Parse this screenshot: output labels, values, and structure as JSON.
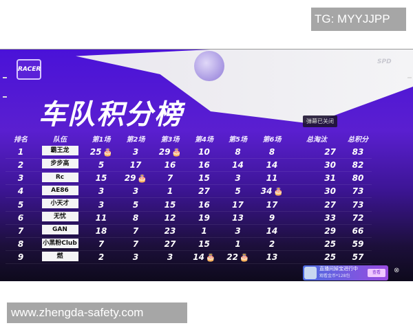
{
  "watermark_top": "TG: MYYJJPP",
  "watermark_bottom": "www.zhengda-safety.com",
  "logo_text": "RACER",
  "sponsor_text": "SPD",
  "title": "车队积分榜",
  "headers": [
    "排名",
    "队伍",
    "第1场",
    "第2场",
    "第3场",
    "第4场",
    "第5场",
    "第6场",
    "总淘汰",
    "总积分"
  ],
  "rows": [
    {
      "rank": "1",
      "team": "霸王龙",
      "games": [
        "25",
        "3",
        "29",
        "10",
        "8",
        "8"
      ],
      "cakes": [
        true,
        false,
        true,
        false,
        false,
        false
      ],
      "elims": "27",
      "total": "83"
    },
    {
      "rank": "2",
      "team": "步步高",
      "games": [
        "5",
        "17",
        "16",
        "16",
        "14",
        "14"
      ],
      "cakes": [
        false,
        false,
        false,
        false,
        false,
        false
      ],
      "elims": "30",
      "total": "82"
    },
    {
      "rank": "3",
      "team": "Rc",
      "games": [
        "15",
        "29",
        "7",
        "15",
        "3",
        "11"
      ],
      "cakes": [
        false,
        true,
        false,
        false,
        false,
        false
      ],
      "elims": "31",
      "total": "80"
    },
    {
      "rank": "4",
      "team": "AE86",
      "games": [
        "3",
        "3",
        "1",
        "27",
        "5",
        "34"
      ],
      "cakes": [
        false,
        false,
        false,
        false,
        false,
        true
      ],
      "elims": "30",
      "total": "73"
    },
    {
      "rank": "5",
      "team": "小天才",
      "games": [
        "3",
        "5",
        "15",
        "16",
        "17",
        "17"
      ],
      "cakes": [
        false,
        false,
        false,
        false,
        false,
        false
      ],
      "elims": "27",
      "total": "73"
    },
    {
      "rank": "6",
      "team": "无忧",
      "games": [
        "11",
        "8",
        "12",
        "19",
        "13",
        "9"
      ],
      "cakes": [
        false,
        false,
        false,
        false,
        false,
        false
      ],
      "elims": "33",
      "total": "72"
    },
    {
      "rank": "7",
      "team": "GAN",
      "games": [
        "18",
        "7",
        "23",
        "1",
        "3",
        "14"
      ],
      "cakes": [
        false,
        false,
        false,
        false,
        false,
        false
      ],
      "elims": "29",
      "total": "66"
    },
    {
      "rank": "8",
      "team": "小黑粉Club",
      "games": [
        "7",
        "7",
        "27",
        "15",
        "1",
        "2"
      ],
      "cakes": [
        false,
        false,
        false,
        false,
        false,
        false
      ],
      "elims": "25",
      "total": "59"
    },
    {
      "rank": "9",
      "team": "燃",
      "games": [
        "2",
        "3",
        "3",
        "14",
        "22",
        "13"
      ],
      "cakes": [
        false,
        false,
        false,
        true,
        true,
        false
      ],
      "elims": "25",
      "total": "57"
    }
  ],
  "tooltip": "弹幕已关闭",
  "popup": {
    "title": "直播间掉宝进行中",
    "subtitle": "观看金币*128包",
    "button": "查看"
  },
  "colors": {
    "accent": "#4a12d8",
    "cell_bg": "#f4f4f6"
  }
}
